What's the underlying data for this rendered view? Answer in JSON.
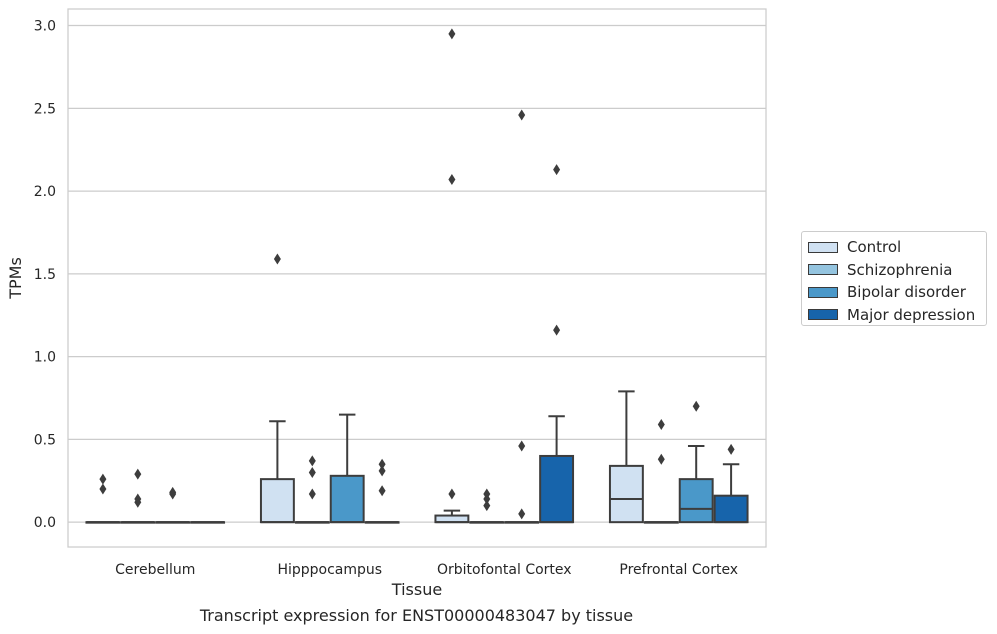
{
  "chart_data": {
    "type": "box",
    "xlabel": "Tissue",
    "ylabel": "TPMs",
    "ylim": [
      -0.15,
      3.1
    ],
    "yticks": [
      "0.0",
      "0.5",
      "1.0",
      "1.5",
      "2.0",
      "2.5",
      "3.0"
    ],
    "ytick_values": [
      0,
      0.5,
      1.0,
      1.5,
      2.0,
      2.5,
      3.0
    ],
    "grid": "horizontal",
    "legend_position": "right",
    "categories": [
      "Cerebellum",
      "Hipppocampus",
      "Orbitofontal Cortex",
      "Prefrontal Cortex"
    ],
    "series": [
      {
        "name": "Control",
        "color": "#d0e1f2",
        "boxes": [
          {
            "q1": 0,
            "median": 0,
            "q3": 0,
            "whislo": 0,
            "whishi": 0,
            "fliers": [
              0.2,
              0.26
            ]
          },
          {
            "q1": 0,
            "median": 0,
            "q3": 0.26,
            "whislo": 0,
            "whishi": 0.61,
            "fliers": [
              1.59
            ]
          },
          {
            "q1": 0,
            "median": 0,
            "q3": 0.04,
            "whislo": 0,
            "whishi": 0.07,
            "fliers": [
              0.17,
              2.07,
              2.95
            ]
          },
          {
            "q1": 0,
            "median": 0.14,
            "q3": 0.34,
            "whislo": 0,
            "whishi": 0.79,
            "fliers": []
          }
        ]
      },
      {
        "name": "Schizophrenia",
        "color": "#94c4df",
        "boxes": [
          {
            "q1": 0,
            "median": 0,
            "q3": 0,
            "whislo": 0,
            "whishi": 0,
            "fliers": [
              0.12,
              0.14,
              0.29
            ]
          },
          {
            "q1": 0,
            "median": 0,
            "q3": 0,
            "whislo": 0,
            "whishi": 0,
            "fliers": [
              0.17,
              0.3,
              0.37
            ]
          },
          {
            "q1": 0,
            "median": 0,
            "q3": 0,
            "whislo": 0,
            "whishi": 0,
            "fliers": [
              0.1,
              0.14,
              0.17
            ]
          },
          {
            "q1": 0,
            "median": 0,
            "q3": 0,
            "whislo": 0,
            "whishi": 0,
            "fliers": [
              0.38,
              0.59
            ]
          }
        ]
      },
      {
        "name": "Bipolar disorder",
        "color": "#4a98c9",
        "boxes": [
          {
            "q1": 0,
            "median": 0,
            "q3": 0,
            "whislo": 0,
            "whishi": 0,
            "fliers": [
              0.17,
              0.18
            ]
          },
          {
            "q1": 0,
            "median": 0,
            "q3": 0.28,
            "whislo": 0,
            "whishi": 0.65,
            "fliers": []
          },
          {
            "q1": 0,
            "median": 0,
            "q3": 0,
            "whislo": 0,
            "whishi": 0,
            "fliers": [
              0.05,
              0.46,
              2.46
            ]
          },
          {
            "q1": 0,
            "median": 0.08,
            "q3": 0.26,
            "whislo": 0,
            "whishi": 0.46,
            "fliers": [
              0.7
            ]
          }
        ]
      },
      {
        "name": "Major depression",
        "color": "#1764ab",
        "boxes": [
          {
            "q1": 0,
            "median": 0,
            "q3": 0,
            "whislo": 0,
            "whishi": 0,
            "fliers": []
          },
          {
            "q1": 0,
            "median": 0,
            "q3": 0,
            "whislo": 0,
            "whishi": 0,
            "fliers": [
              0.19,
              0.31,
              0.35
            ]
          },
          {
            "q1": 0,
            "median": 0,
            "q3": 0.4,
            "whislo": 0,
            "whishi": 0.64,
            "fliers": [
              1.16,
              2.13
            ]
          },
          {
            "q1": 0,
            "median": 0,
            "q3": 0.16,
            "whislo": 0,
            "whishi": 0.35,
            "fliers": [
              0.44
            ]
          }
        ]
      }
    ]
  },
  "caption": "Transcript expression for ENST00000483047 by tissue"
}
